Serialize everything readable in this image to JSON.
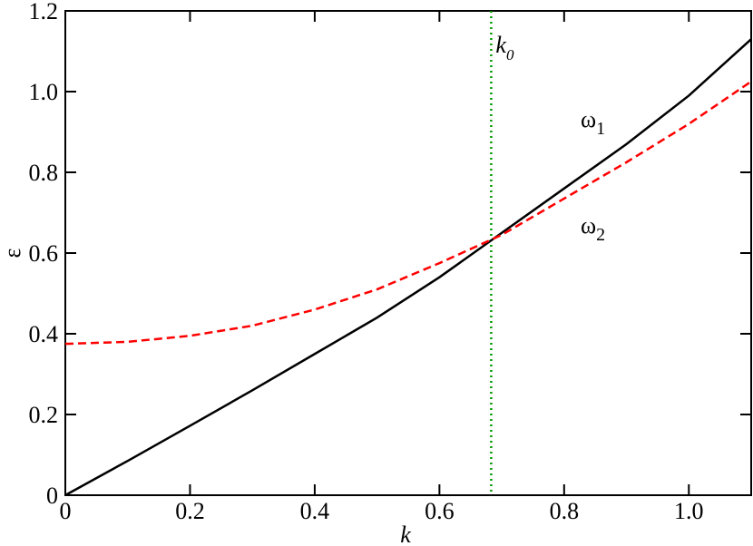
{
  "chart_data": {
    "type": "line",
    "xlabel": "k",
    "ylabel": "ε",
    "x": [
      0,
      0.1,
      0.2,
      0.3,
      0.4,
      0.5,
      0.6,
      0.7,
      0.8,
      0.9,
      1.0,
      1.1
    ],
    "series": [
      {
        "name": "ω",
        "subscript": "1",
        "color": "#000000",
        "dash": false,
        "values": [
          0,
          0.085,
          0.172,
          0.26,
          0.35,
          0.44,
          0.54,
          0.65,
          0.76,
          0.87,
          0.99,
          1.13
        ]
      },
      {
        "name": "ω",
        "subscript": "2",
        "color": "#ff0000",
        "dash": true,
        "values": [
          0.375,
          0.38,
          0.395,
          0.42,
          0.46,
          0.51,
          0.575,
          0.645,
          0.735,
          0.825,
          0.92,
          1.025
        ]
      }
    ],
    "vline": {
      "x": 0.683,
      "label": "k",
      "subscript": "0",
      "color": "#009900"
    },
    "xlim": [
      0,
      1.1
    ],
    "ylim": [
      0,
      1.2
    ],
    "xticks": [
      0,
      0.2,
      0.4,
      0.6,
      0.8,
      {
        "value": 1,
        "label": "1.0"
      }
    ],
    "yticks": [
      0,
      0.2,
      0.4,
      0.6,
      0.8,
      {
        "value": 1,
        "label": "1.0"
      },
      1.2
    ]
  }
}
